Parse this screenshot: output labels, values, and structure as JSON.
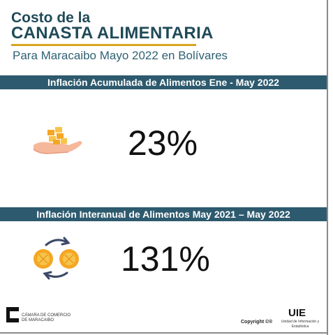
{
  "header": {
    "title_line1": "Costo de la",
    "title_line2": "CANASTA ALIMENTARIA",
    "subtitle": "Para Maracaibo Mayo 2022 en Bolívares"
  },
  "sections": [
    {
      "band_label": "Inflación Acumulada de Alimentos Ene - May 2022",
      "value": "23%",
      "icon": "coins-in-hand-icon"
    },
    {
      "band_label": "Inflación Interanual de Alimentos May 2021 – May 2022",
      "value": "131%",
      "icon": "coin-exchange-icon"
    }
  ],
  "footer": {
    "left_logo_line1": "CÁMARA DE COMERCIO",
    "left_logo_line2": "DE MARACAIBO",
    "copyright": "Copyright ©®",
    "uie_title": "UIE",
    "uie_subtitle": "Unidad de Información y Estadística"
  },
  "colors": {
    "title": "#1f4a58",
    "accent_underline": "#d9a520",
    "band_bg": "#2d5a6e",
    "coin": "#f5a623",
    "hand": "#f6b89a"
  }
}
